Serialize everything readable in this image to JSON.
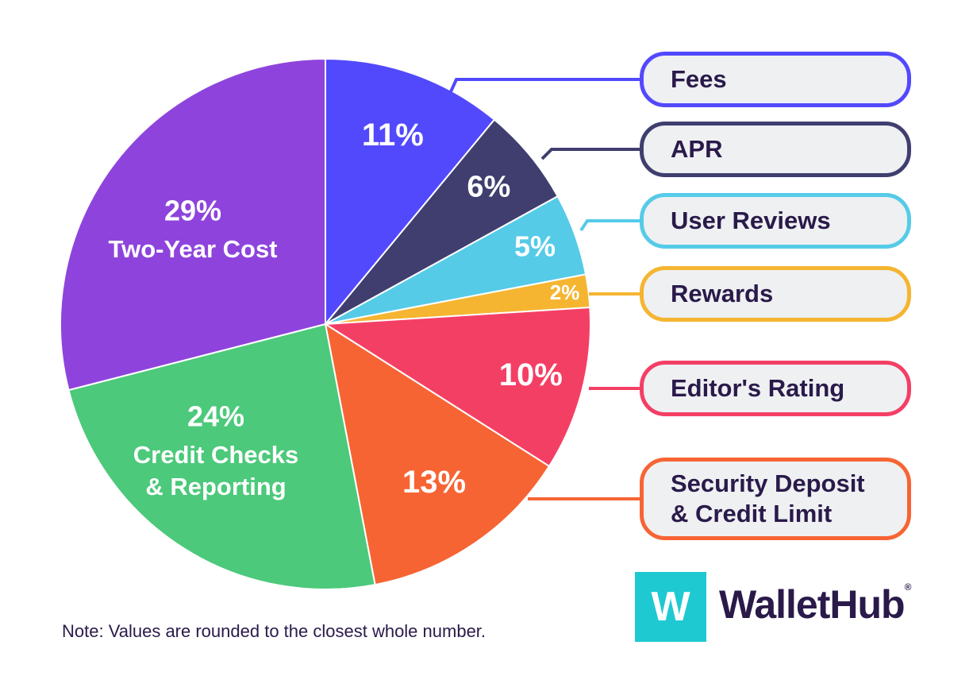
{
  "chart_data": {
    "type": "pie",
    "start_angle_deg": 0,
    "direction": "clockwise",
    "slices": [
      {
        "key": "fees",
        "value": 11,
        "label": "11%",
        "legend": "Fees",
        "color": "#5249fd"
      },
      {
        "key": "apr",
        "value": 6,
        "label": "6%",
        "legend": "APR",
        "color": "#3f3e6f"
      },
      {
        "key": "user_reviews",
        "value": 5,
        "label": "5%",
        "legend": "User Reviews",
        "color": "#55cbe8"
      },
      {
        "key": "rewards",
        "value": 2,
        "label": "2%",
        "legend": "Rewards",
        "color": "#f5b531"
      },
      {
        "key": "editors_rating",
        "value": 10,
        "label": "10%",
        "legend": "Editor's Rating",
        "color": "#f43f65"
      },
      {
        "key": "security_deposit",
        "value": 13,
        "label": "13%",
        "legend": "Security Deposit & Credit Limit",
        "legend_lines": [
          "Security Deposit",
          "& Credit Limit"
        ],
        "color": "#f76434"
      },
      {
        "key": "credit_checks",
        "value": 24,
        "label": "24%",
        "label_lines": [
          "Credit Checks",
          "& Reporting"
        ],
        "color": "#4cc97b"
      },
      {
        "key": "two_year_cost",
        "value": 29,
        "label": "29%",
        "label_lines": [
          "Two-Year Cost"
        ],
        "color": "#8e44dc"
      }
    ]
  },
  "note": "Note: Values are rounded to the closest whole number.",
  "logo": {
    "tile_letter": "W",
    "wordmark": "WalletHub",
    "registered": "®",
    "tile_color": "#1ec9d2"
  }
}
